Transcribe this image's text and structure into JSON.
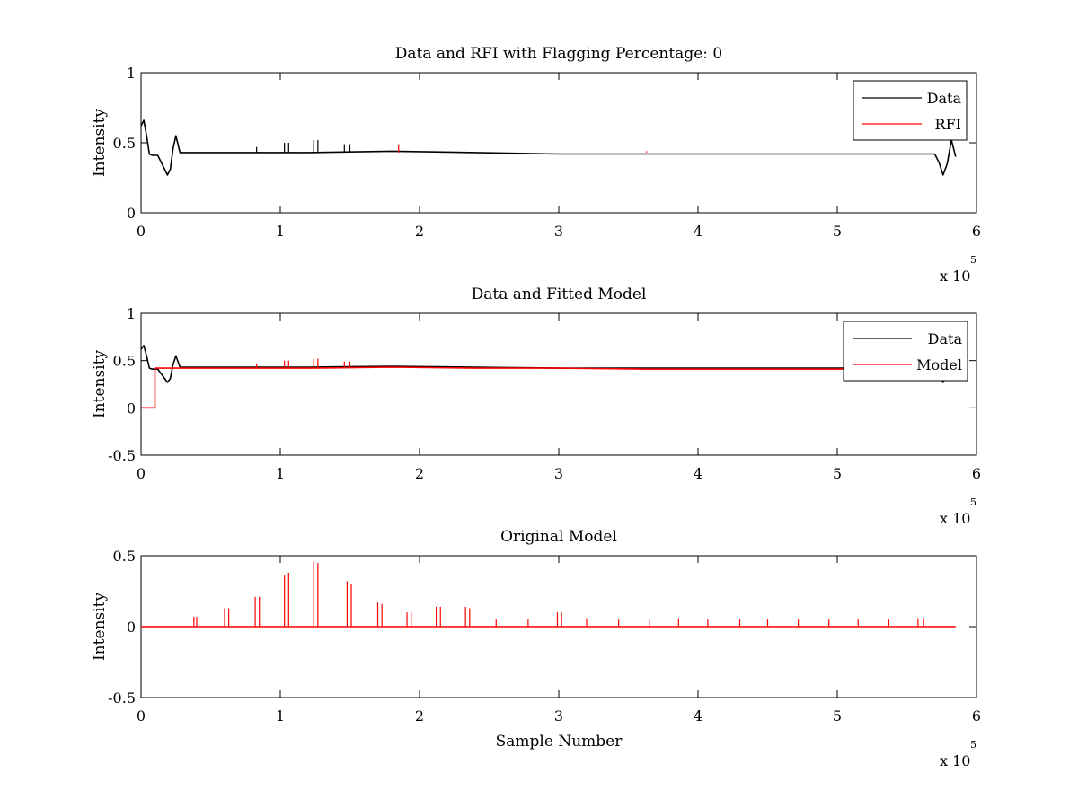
{
  "chart_data": [
    {
      "id": "p1",
      "type": "line",
      "title": "Data and RFI with Flagging Percentage: 0",
      "xlabel": "",
      "ylabel": "Intensity",
      "xlim": [
        0,
        600000
      ],
      "ylim": [
        0,
        1
      ],
      "xticks": [
        0,
        100000,
        200000,
        300000,
        400000,
        500000,
        600000
      ],
      "xticklabels": [
        "0",
        "1",
        "2",
        "3",
        "4",
        "5",
        "6"
      ],
      "yticks": [
        0,
        0.5,
        1
      ],
      "yticklabels": [
        "0",
        "0.5",
        "1"
      ],
      "x_exponent": {
        "base": "x 10",
        "power": "5"
      },
      "legend": {
        "placement": "top-right",
        "entries": [
          "Data",
          "RFI"
        ]
      },
      "series": [
        {
          "name": "Data",
          "color": "#000000",
          "x": [
            0,
            2000,
            4000,
            6000,
            8000,
            12000,
            16000,
            19000,
            21000,
            23000,
            25000,
            28000,
            60000,
            120000,
            180000,
            240000,
            300000,
            360000,
            420000,
            480000,
            540000,
            570000,
            573000,
            576000,
            579000,
            582000,
            585000
          ],
          "y": [
            0.62,
            0.66,
            0.55,
            0.42,
            0.41,
            0.41,
            0.33,
            0.27,
            0.31,
            0.46,
            0.55,
            0.43,
            0.43,
            0.43,
            0.44,
            0.43,
            0.42,
            0.42,
            0.42,
            0.42,
            0.42,
            0.42,
            0.36,
            0.27,
            0.35,
            0.52,
            0.4
          ],
          "spikes": [
            {
              "x": 83000,
              "y": 0.47
            },
            {
              "x": 103000,
              "y": 0.5
            },
            {
              "x": 106000,
              "y": 0.5
            },
            {
              "x": 124000,
              "y": 0.52
            },
            {
              "x": 127000,
              "y": 0.52
            },
            {
              "x": 146000,
              "y": 0.49
            },
            {
              "x": 150000,
              "y": 0.49
            }
          ]
        },
        {
          "name": "RFI",
          "color": "#ff0000",
          "spikes": [
            {
              "x": 185000,
              "y": 0.49
            },
            {
              "x": 363000,
              "y": 0.44
            }
          ]
        }
      ]
    },
    {
      "id": "p2",
      "type": "line",
      "title": "Data and Fitted Model",
      "xlabel": "",
      "ylabel": "Intensity",
      "xlim": [
        0,
        600000
      ],
      "ylim": [
        -0.5,
        1
      ],
      "xticks": [
        0,
        100000,
        200000,
        300000,
        400000,
        500000,
        600000
      ],
      "xticklabels": [
        "0",
        "1",
        "2",
        "3",
        "4",
        "5",
        "6"
      ],
      "yticks": [
        -0.5,
        0,
        0.5,
        1
      ],
      "yticklabels": [
        "-0.5",
        "0",
        "0.5",
        "1"
      ],
      "x_exponent": {
        "base": "x 10",
        "power": "5"
      },
      "legend": {
        "placement": "top-right",
        "entries": [
          "Data",
          "Model"
        ]
      },
      "series": [
        {
          "name": "Data",
          "color": "#000000",
          "x": [
            0,
            2000,
            4000,
            6000,
            8000,
            12000,
            16000,
            19000,
            21000,
            23000,
            25000,
            28000,
            60000,
            120000,
            180000,
            240000,
            300000,
            360000,
            420000,
            480000,
            540000,
            570000,
            573000,
            576000,
            579000
          ],
          "y": [
            0.62,
            0.66,
            0.55,
            0.42,
            0.41,
            0.41,
            0.33,
            0.27,
            0.31,
            0.46,
            0.55,
            0.43,
            0.43,
            0.43,
            0.44,
            0.43,
            0.42,
            0.42,
            0.42,
            0.42,
            0.42,
            0.42,
            0.36,
            0.27,
            0.35
          ],
          "spikes": []
        },
        {
          "name": "Model",
          "color": "#ff0000",
          "x": [
            0,
            10000,
            10000,
            60000,
            120000,
            180000,
            240000,
            300000,
            360000,
            420000,
            480000,
            540000,
            580000
          ],
          "y": [
            0,
            0,
            0.42,
            0.42,
            0.42,
            0.43,
            0.42,
            0.42,
            0.41,
            0.41,
            0.41,
            0.41,
            0.41
          ],
          "spikes": [
            {
              "x": 83000,
              "y": 0.47
            },
            {
              "x": 103000,
              "y": 0.5
            },
            {
              "x": 106000,
              "y": 0.5
            },
            {
              "x": 124000,
              "y": 0.52
            },
            {
              "x": 127000,
              "y": 0.52
            },
            {
              "x": 146000,
              "y": 0.49
            },
            {
              "x": 150000,
              "y": 0.49
            }
          ]
        }
      ]
    },
    {
      "id": "p3",
      "type": "line",
      "title": "Original Model",
      "xlabel": "Sample Number",
      "ylabel": "Intensity",
      "xlim": [
        0,
        600000
      ],
      "ylim": [
        -0.5,
        0.5
      ],
      "xticks": [
        0,
        100000,
        200000,
        300000,
        400000,
        500000,
        600000
      ],
      "xticklabels": [
        "0",
        "1",
        "2",
        "3",
        "4",
        "5",
        "6"
      ],
      "yticks": [
        -0.5,
        0,
        0.5
      ],
      "yticklabels": [
        "-0.5",
        "0",
        "0.5"
      ],
      "x_exponent": {
        "base": "x 10",
        "power": "5"
      },
      "legend": null,
      "series": [
        {
          "name": "",
          "color": "#ff0000",
          "x": [
            0,
            585000
          ],
          "y": [
            0,
            0
          ],
          "spikes": [
            {
              "x": 38000,
              "y": 0.07
            },
            {
              "x": 40000,
              "y": 0.07
            },
            {
              "x": 60000,
              "y": 0.13
            },
            {
              "x": 63000,
              "y": 0.13
            },
            {
              "x": 82000,
              "y": 0.21
            },
            {
              "x": 85000,
              "y": 0.21
            },
            {
              "x": 103000,
              "y": 0.36
            },
            {
              "x": 106000,
              "y": 0.38
            },
            {
              "x": 124000,
              "y": 0.46
            },
            {
              "x": 127000,
              "y": 0.45
            },
            {
              "x": 148000,
              "y": 0.32
            },
            {
              "x": 151000,
              "y": 0.3
            },
            {
              "x": 170000,
              "y": 0.17
            },
            {
              "x": 173000,
              "y": 0.16
            },
            {
              "x": 191000,
              "y": 0.1
            },
            {
              "x": 194000,
              "y": 0.1
            },
            {
              "x": 212000,
              "y": 0.14
            },
            {
              "x": 215000,
              "y": 0.14
            },
            {
              "x": 233000,
              "y": 0.14
            },
            {
              "x": 236000,
              "y": 0.13
            },
            {
              "x": 255000,
              "y": 0.05
            },
            {
              "x": 278000,
              "y": 0.05
            },
            {
              "x": 299000,
              "y": 0.1
            },
            {
              "x": 302000,
              "y": 0.1
            },
            {
              "x": 320000,
              "y": 0.06
            },
            {
              "x": 343000,
              "y": 0.05
            },
            {
              "x": 365000,
              "y": 0.05
            },
            {
              "x": 386000,
              "y": 0.06
            },
            {
              "x": 407000,
              "y": 0.05
            },
            {
              "x": 430000,
              "y": 0.05
            },
            {
              "x": 450000,
              "y": 0.05
            },
            {
              "x": 472000,
              "y": 0.05
            },
            {
              "x": 494000,
              "y": 0.05
            },
            {
              "x": 515000,
              "y": 0.05
            },
            {
              "x": 537000,
              "y": 0.05
            },
            {
              "x": 558000,
              "y": 0.06
            },
            {
              "x": 562000,
              "y": 0.06
            }
          ]
        }
      ]
    }
  ]
}
